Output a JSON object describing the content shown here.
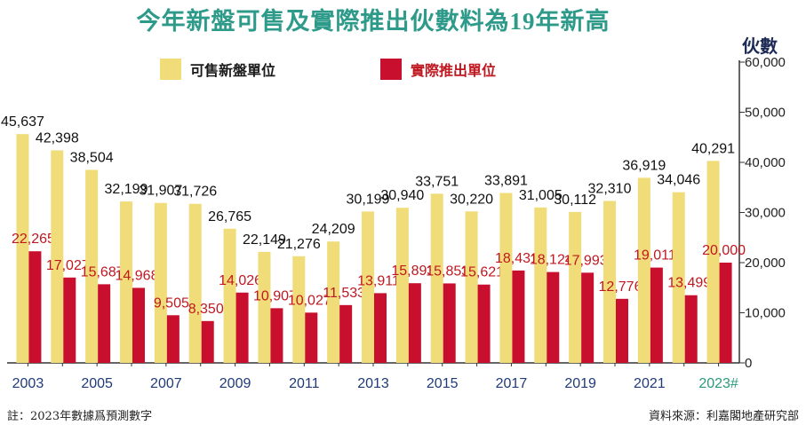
{
  "title": "今年新盤可售及實際推出伙數料為19年新高",
  "unit_label": "伙數",
  "legend": [
    {
      "label": "可售新盤單位",
      "color": "#f0dc78"
    },
    {
      "label": "實際推出單位",
      "color": "#c8102e"
    }
  ],
  "footnote": "註：2023年數據爲預測數字",
  "source": "資料來源：利嘉閣地產研究部",
  "chart_data": {
    "type": "bar",
    "categories": [
      "2003",
      "2004",
      "2005",
      "2006",
      "2007",
      "2008",
      "2009",
      "2010",
      "2011",
      "2012",
      "2013",
      "2014",
      "2015",
      "2016",
      "2017",
      "2018",
      "2019",
      "2020",
      "2021",
      "2022",
      "2023#"
    ],
    "x_tick_labels": [
      "2003",
      "2005",
      "2007",
      "2009",
      "2011",
      "2013",
      "2015",
      "2017",
      "2019",
      "2021",
      "2023#"
    ],
    "series": [
      {
        "name": "可售新盤單位",
        "color": "#f0dc78",
        "values": [
          45637,
          42398,
          38504,
          32199,
          31907,
          31726,
          26765,
          22149,
          21276,
          24209,
          30199,
          30940,
          33751,
          30220,
          33891,
          31005,
          30112,
          32310,
          36919,
          34046,
          40291
        ],
        "labels": [
          "45,637",
          "42,398",
          "38,504",
          "32,199",
          "31,907",
          "31,726",
          "26,765",
          "22,149",
          "21,276",
          "24,209",
          "30,199",
          "30,940",
          "33,751",
          "30,220",
          "33,891",
          "31,005",
          "30,112",
          "32,310",
          "36,919",
          "34,046",
          "40,291"
        ]
      },
      {
        "name": "實際推出單位",
        "color": "#c8102e",
        "values": [
          22265,
          17027,
          15687,
          14968,
          9505,
          8350,
          14026,
          10907,
          10027,
          11533,
          13911,
          15893,
          15853,
          15621,
          18431,
          18124,
          17993,
          12776,
          19011,
          13499,
          20000
        ],
        "labels": [
          "22,265",
          "17,027",
          "15,687",
          "14,968",
          "9,505",
          "8,350",
          "14,026",
          "10,907",
          "10,027",
          "11,533",
          "13,911",
          "15,893",
          "15,853",
          "15,621",
          "18,431",
          "18,124",
          "17,993",
          "12,776",
          "19,011",
          "13,499",
          "20,000"
        ]
      }
    ],
    "yticks": [
      "0",
      "10,000",
      "20,000",
      "30,000",
      "40,000",
      "50,000",
      "60,000"
    ],
    "ylim": [
      0,
      60000
    ],
    "y_axis_side": "right",
    "grid": false,
    "legend_position": "top-left"
  }
}
